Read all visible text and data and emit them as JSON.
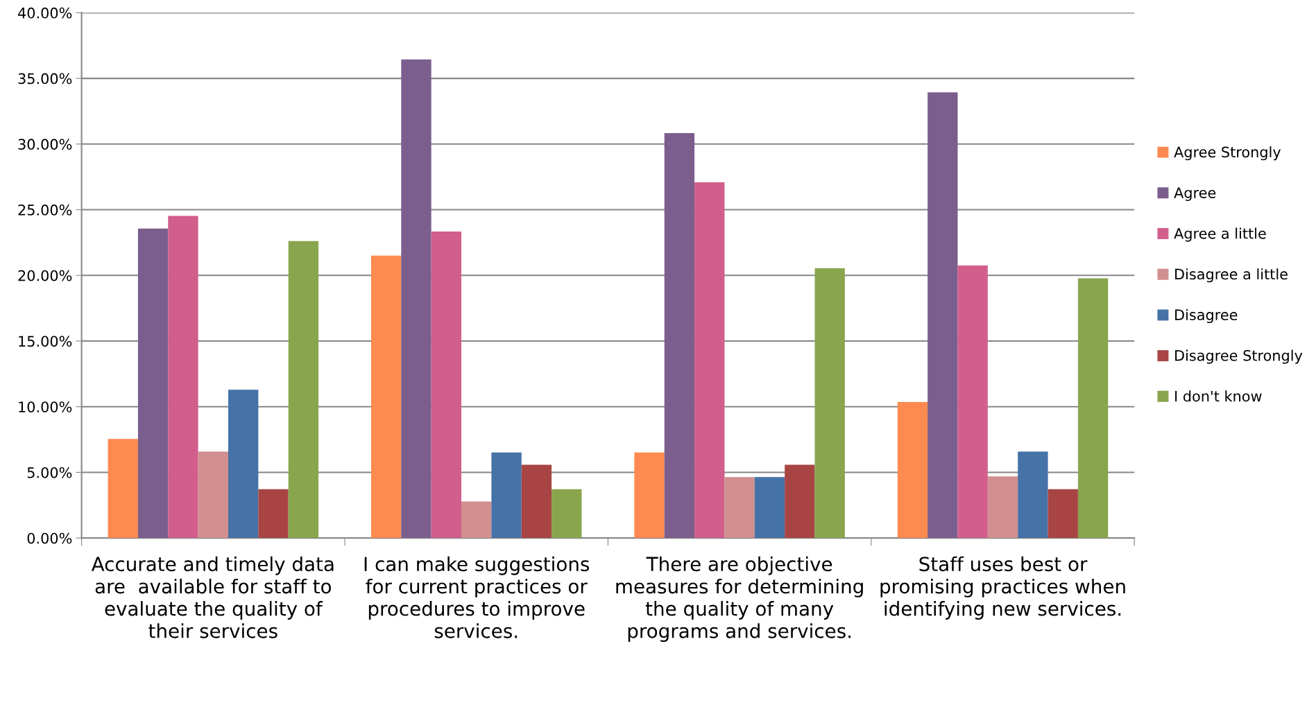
{
  "chart_data": {
    "type": "bar",
    "categories": [
      "Accurate and timely data are  available for staff to evaluate the quality of their services",
      "I can make suggestions for current practices or procedures to improve services.",
      "There are objective measures for determining the quality of many programs and services.",
      "Staff uses best or promising practices when identifying new services."
    ],
    "series": [
      {
        "name": "Agree Strongly",
        "color": "#fd8a50",
        "values": [
          7.55,
          21.5,
          6.52,
          10.35
        ]
      },
      {
        "name": "Agree",
        "color": "#7b5e8e",
        "values": [
          23.56,
          36.44,
          30.84,
          33.94
        ]
      },
      {
        "name": "Agree a little",
        "color": "#d25e8c",
        "values": [
          24.53,
          23.34,
          27.09,
          20.75
        ]
      },
      {
        "name": "Disagree a little",
        "color": "#d28f8f",
        "values": [
          6.58,
          2.78,
          4.64,
          4.69
        ]
      },
      {
        "name": "Disagree",
        "color": "#4572a7",
        "values": [
          11.29,
          6.52,
          4.64,
          6.58
        ]
      },
      {
        "name": "Disagree Strongly",
        "color": "#a84544",
        "values": [
          3.72,
          5.58,
          5.58,
          3.72
        ]
      },
      {
        "name": "I don't know",
        "color": "#89a54e",
        "values": [
          22.61,
          3.72,
          20.54,
          19.78
        ]
      }
    ],
    "ylim": [
      0,
      40
    ],
    "yticks": [
      {
        "value": 0,
        "label": "0.00%"
      },
      {
        "value": 5,
        "label": "5.00%"
      },
      {
        "value": 10,
        "label": "10.00%"
      },
      {
        "value": 15,
        "label": "15.00%"
      },
      {
        "value": 20,
        "label": "20.00%"
      },
      {
        "value": 25,
        "label": "25.00%"
      },
      {
        "value": 30,
        "label": "30.00%"
      },
      {
        "value": 35,
        "label": "35.00%"
      },
      {
        "value": 40,
        "label": "40.00%"
      }
    ],
    "grid": "y",
    "legend": "right"
  }
}
